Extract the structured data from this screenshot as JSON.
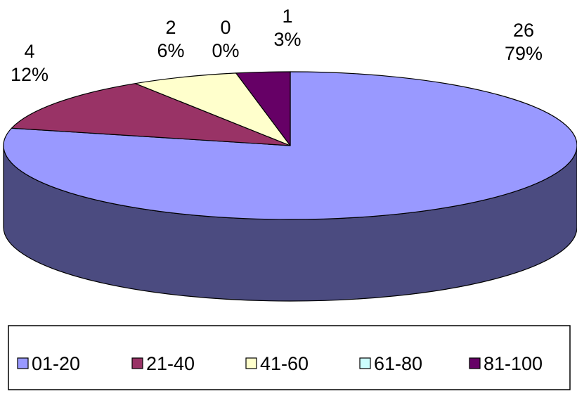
{
  "chart_data": {
    "type": "pie",
    "style": "3d",
    "slices": [
      {
        "category": "01-20",
        "value": 26,
        "percent": "79%",
        "color": "#9999ff",
        "side_color": "#4b4b80"
      },
      {
        "category": "21-40",
        "value": 4,
        "percent": "12%",
        "color": "#993366",
        "side_color": "#5a1e3c"
      },
      {
        "category": "41-60",
        "value": 2,
        "percent": "6%",
        "color": "#ffffcc",
        "side_color": "#9a9a7a"
      },
      {
        "category": "61-80",
        "value": 0,
        "percent": "0%",
        "color": "#ccffff",
        "side_color": "#7a9999"
      },
      {
        "category": "81-100",
        "value": 1,
        "percent": "3%",
        "color": "#660066",
        "side_color": "#3a003a"
      }
    ],
    "legend_position": "bottom",
    "outline_color": "#000000"
  }
}
